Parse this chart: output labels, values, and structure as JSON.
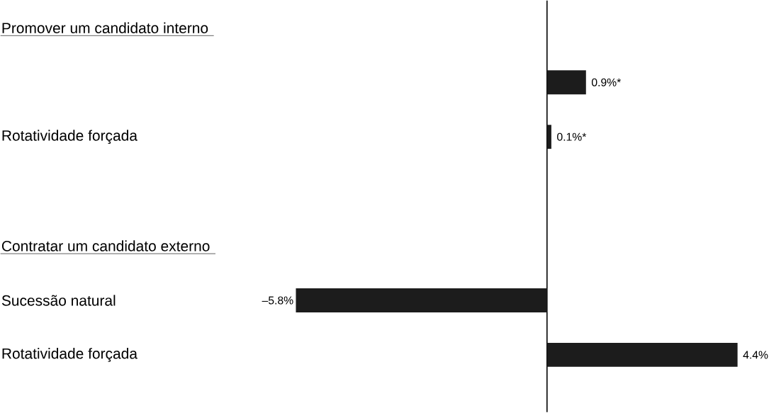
{
  "chart_data": {
    "type": "bar",
    "orientation": "horizontal",
    "categories": [
      "Promover um candidato interno",
      null,
      "Rotatividade forçada",
      null,
      "Contratar um candidato externo",
      "Sucessão natural",
      "Rotatividade forçada"
    ],
    "values": [
      null,
      0.9,
      0.1,
      null,
      null,
      -5.8,
      4.4
    ],
    "value_labels": [
      null,
      "0.9%*",
      "0.1%*",
      null,
      null,
      "–5.8%",
      "4.4%"
    ],
    "color": "#1c1c1c"
  }
}
